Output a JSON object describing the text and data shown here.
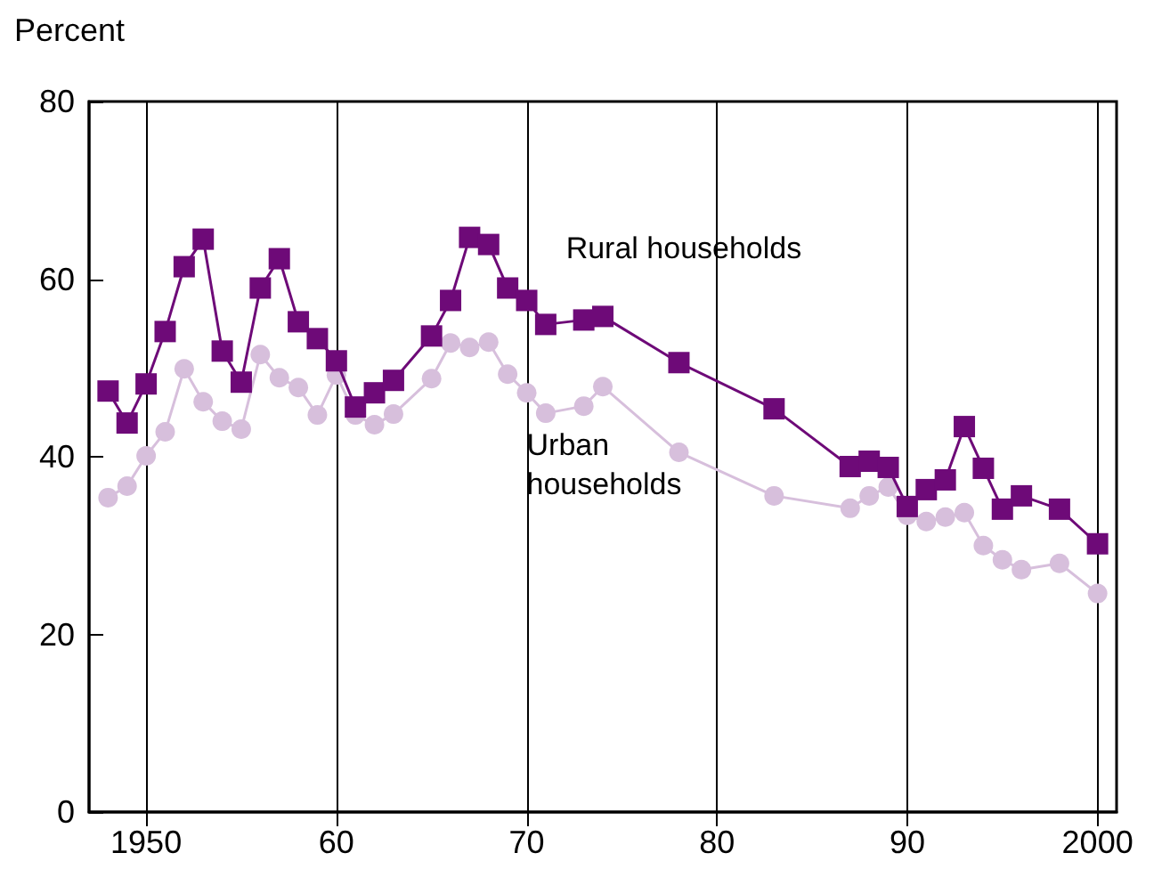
{
  "chart_data": {
    "type": "line",
    "ylabel": "Percent",
    "xlim": [
      1947,
      2001
    ],
    "xticks": [
      1950,
      {
        "value": 1960,
        "label": "60"
      },
      {
        "value": 1970,
        "label": "70"
      },
      {
        "value": 1980,
        "label": "80"
      },
      {
        "value": 1990,
        "label": "90"
      },
      2000
    ],
    "ylim": [
      0,
      80
    ],
    "yticks": [
      0,
      20,
      40,
      60,
      80
    ],
    "grid": "x",
    "legend": false,
    "line_style": "solid",
    "series": [
      {
        "name": "Rural households",
        "color": "#6e0a78",
        "marker": "square",
        "x": [
          1948,
          1949,
          1950,
          1951,
          1952,
          1953,
          1954,
          1955,
          1956,
          1957,
          1958,
          1959,
          1960,
          1961,
          1962,
          1963,
          1965,
          1966,
          1967,
          1968,
          1969,
          1970,
          1971,
          1973,
          1974,
          1978,
          1983,
          1987,
          1988,
          1989,
          1990,
          1991,
          1992,
          1993,
          1994,
          1995,
          1996,
          1998,
          2000
        ],
        "values": [
          47.4,
          43.8,
          48.2,
          54.1,
          61.4,
          64.5,
          51.9,
          48.4,
          59.0,
          62.3,
          55.2,
          53.3,
          50.8,
          45.6,
          47.2,
          48.6,
          53.6,
          57.6,
          64.7,
          63.9,
          59.0,
          57.6,
          54.9,
          55.4,
          55.8,
          50.6,
          45.4,
          38.9,
          39.5,
          38.8,
          34.4,
          36.3,
          37.4,
          43.4,
          38.7,
          34.1,
          35.6,
          34.1,
          30.2
        ]
      },
      {
        "name": "Urban households",
        "color": "#d7bfdc",
        "marker": "circle",
        "x": [
          1948,
          1949,
          1950,
          1951,
          1952,
          1953,
          1954,
          1955,
          1956,
          1957,
          1958,
          1959,
          1960,
          1961,
          1962,
          1963,
          1965,
          1966,
          1967,
          1968,
          1969,
          1970,
          1971,
          1973,
          1974,
          1978,
          1983,
          1987,
          1988,
          1989,
          1990,
          1991,
          1992,
          1993,
          1994,
          1995,
          1996,
          1998,
          2000
        ],
        "values": [
          35.4,
          36.7,
          40.1,
          42.8,
          49.9,
          46.2,
          44.0,
          43.1,
          51.5,
          48.9,
          47.8,
          44.7,
          49.2,
          44.7,
          43.6,
          44.8,
          48.8,
          52.8,
          52.3,
          52.9,
          49.3,
          47.2,
          44.9,
          45.7,
          47.9,
          40.5,
          35.6,
          34.2,
          35.6,
          36.6,
          33.4,
          32.7,
          33.2,
          33.7,
          30.0,
          28.4,
          27.3,
          28.0,
          24.6
        ]
      }
    ]
  }
}
